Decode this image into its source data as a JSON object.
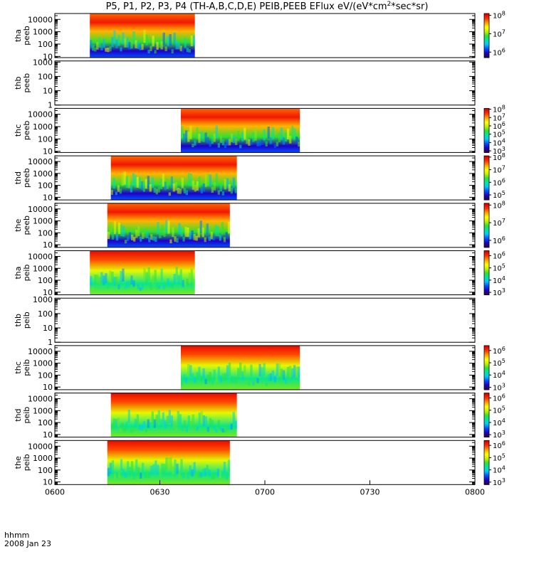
{
  "chart_data": {
    "type": "heatmap",
    "title": "P5, P1, P2, P3, P4 (TH-A,B,C,D,E) PEIB,PEEB EFlux eV/(eV*cm",
    "title_sup": "2",
    "title_tail": "*sec*sr)",
    "x_axis": {
      "label": "hhmm",
      "date": "2008 Jan 23",
      "range": [
        "06:00",
        "08:00"
      ],
      "ticks": [
        "0600",
        "0630",
        "0700",
        "0730",
        "0800"
      ]
    },
    "y_scale": "log",
    "panels": [
      {
        "probe": "tha",
        "product": "peeb",
        "ylim": [
          8,
          30000
        ],
        "yticks": [
          "10",
          "100",
          "1000",
          "10000"
        ],
        "coverage": [
          "06:10",
          "06:40"
        ],
        "colorbar": {
          "ticks": [
            "10^6",
            "10^7",
            "10^8"
          ],
          "log_range": [
            5.7,
            8.1
          ]
        }
      },
      {
        "probe": "thb",
        "product": "peeb",
        "ylim": [
          1,
          1200
        ],
        "yticks": [
          "1",
          "10",
          "100",
          "1000"
        ],
        "coverage": null,
        "colorbar": null
      },
      {
        "probe": "thc",
        "product": "peeb",
        "ylim": [
          8,
          30000
        ],
        "yticks": [
          "10",
          "100",
          "1000",
          "10000"
        ],
        "coverage": [
          "06:36",
          "07:10"
        ],
        "colorbar": {
          "ticks": [
            "10^3",
            "10^4",
            "10^5",
            "10^6",
            "10^7",
            "10^8"
          ],
          "log_range": [
            2.8,
            8.1
          ]
        }
      },
      {
        "probe": "thd",
        "product": "peeb",
        "ylim": [
          6,
          30000
        ],
        "yticks": [
          "10",
          "100",
          "1000",
          "10000"
        ],
        "coverage": [
          "06:16",
          "06:52"
        ],
        "colorbar": {
          "ticks": [
            "10^5",
            "10^6",
            "10^7",
            "10^8"
          ],
          "log_range": [
            4.6,
            8.1
          ]
        }
      },
      {
        "probe": "the",
        "product": "peeb",
        "ylim": [
          6,
          30000
        ],
        "yticks": [
          "10",
          "100",
          "1000",
          "10000"
        ],
        "coverage": [
          "06:15",
          "06:50"
        ],
        "colorbar": {
          "ticks": [
            "10^6",
            "10^7",
            "10^8"
          ],
          "log_range": [
            5.6,
            8.1
          ]
        }
      },
      {
        "probe": "tha",
        "product": "peib",
        "ylim": [
          6,
          30000
        ],
        "yticks": [
          "10",
          "100",
          "1000",
          "10000"
        ],
        "coverage": [
          "06:10",
          "06:40"
        ],
        "colorbar": {
          "ticks": [
            "10^3",
            "10^4",
            "10^5",
            "10^6"
          ],
          "log_range": [
            2.8,
            6.4
          ]
        }
      },
      {
        "probe": "thb",
        "product": "peib",
        "ylim": [
          1,
          1200
        ],
        "yticks": [
          "1",
          "10",
          "100",
          "1000"
        ],
        "coverage": null,
        "colorbar": null
      },
      {
        "probe": "thc",
        "product": "peib",
        "ylim": [
          6,
          30000
        ],
        "yticks": [
          "10",
          "100",
          "1000",
          "10000"
        ],
        "coverage": [
          "06:36",
          "07:10"
        ],
        "colorbar": {
          "ticks": [
            "10^3",
            "10^4",
            "10^5",
            "10^6"
          ],
          "log_range": [
            2.8,
            6.4
          ]
        }
      },
      {
        "probe": "thd",
        "product": "peib",
        "ylim": [
          6,
          30000
        ],
        "yticks": [
          "10",
          "100",
          "1000",
          "10000"
        ],
        "coverage": [
          "06:16",
          "06:52"
        ],
        "colorbar": {
          "ticks": [
            "10^3",
            "10^4",
            "10^5",
            "10^6"
          ],
          "log_range": [
            2.8,
            6.4
          ]
        }
      },
      {
        "probe": "the",
        "product": "peib",
        "ylim": [
          6,
          30000
        ],
        "yticks": [
          "10",
          "100",
          "1000",
          "10000"
        ],
        "coverage": [
          "06:15",
          "06:50"
        ],
        "colorbar": {
          "ticks": [
            "10^3",
            "10^4",
            "10^5",
            "10^6"
          ],
          "log_range": [
            2.8,
            6.4
          ]
        }
      }
    ],
    "colormap": [
      "#2a004f",
      "#1e00c8",
      "#0050ff",
      "#00c8ff",
      "#00e6a0",
      "#30e030",
      "#c8f000",
      "#ffff00",
      "#ffa000",
      "#ff3000",
      "#e00000"
    ]
  }
}
